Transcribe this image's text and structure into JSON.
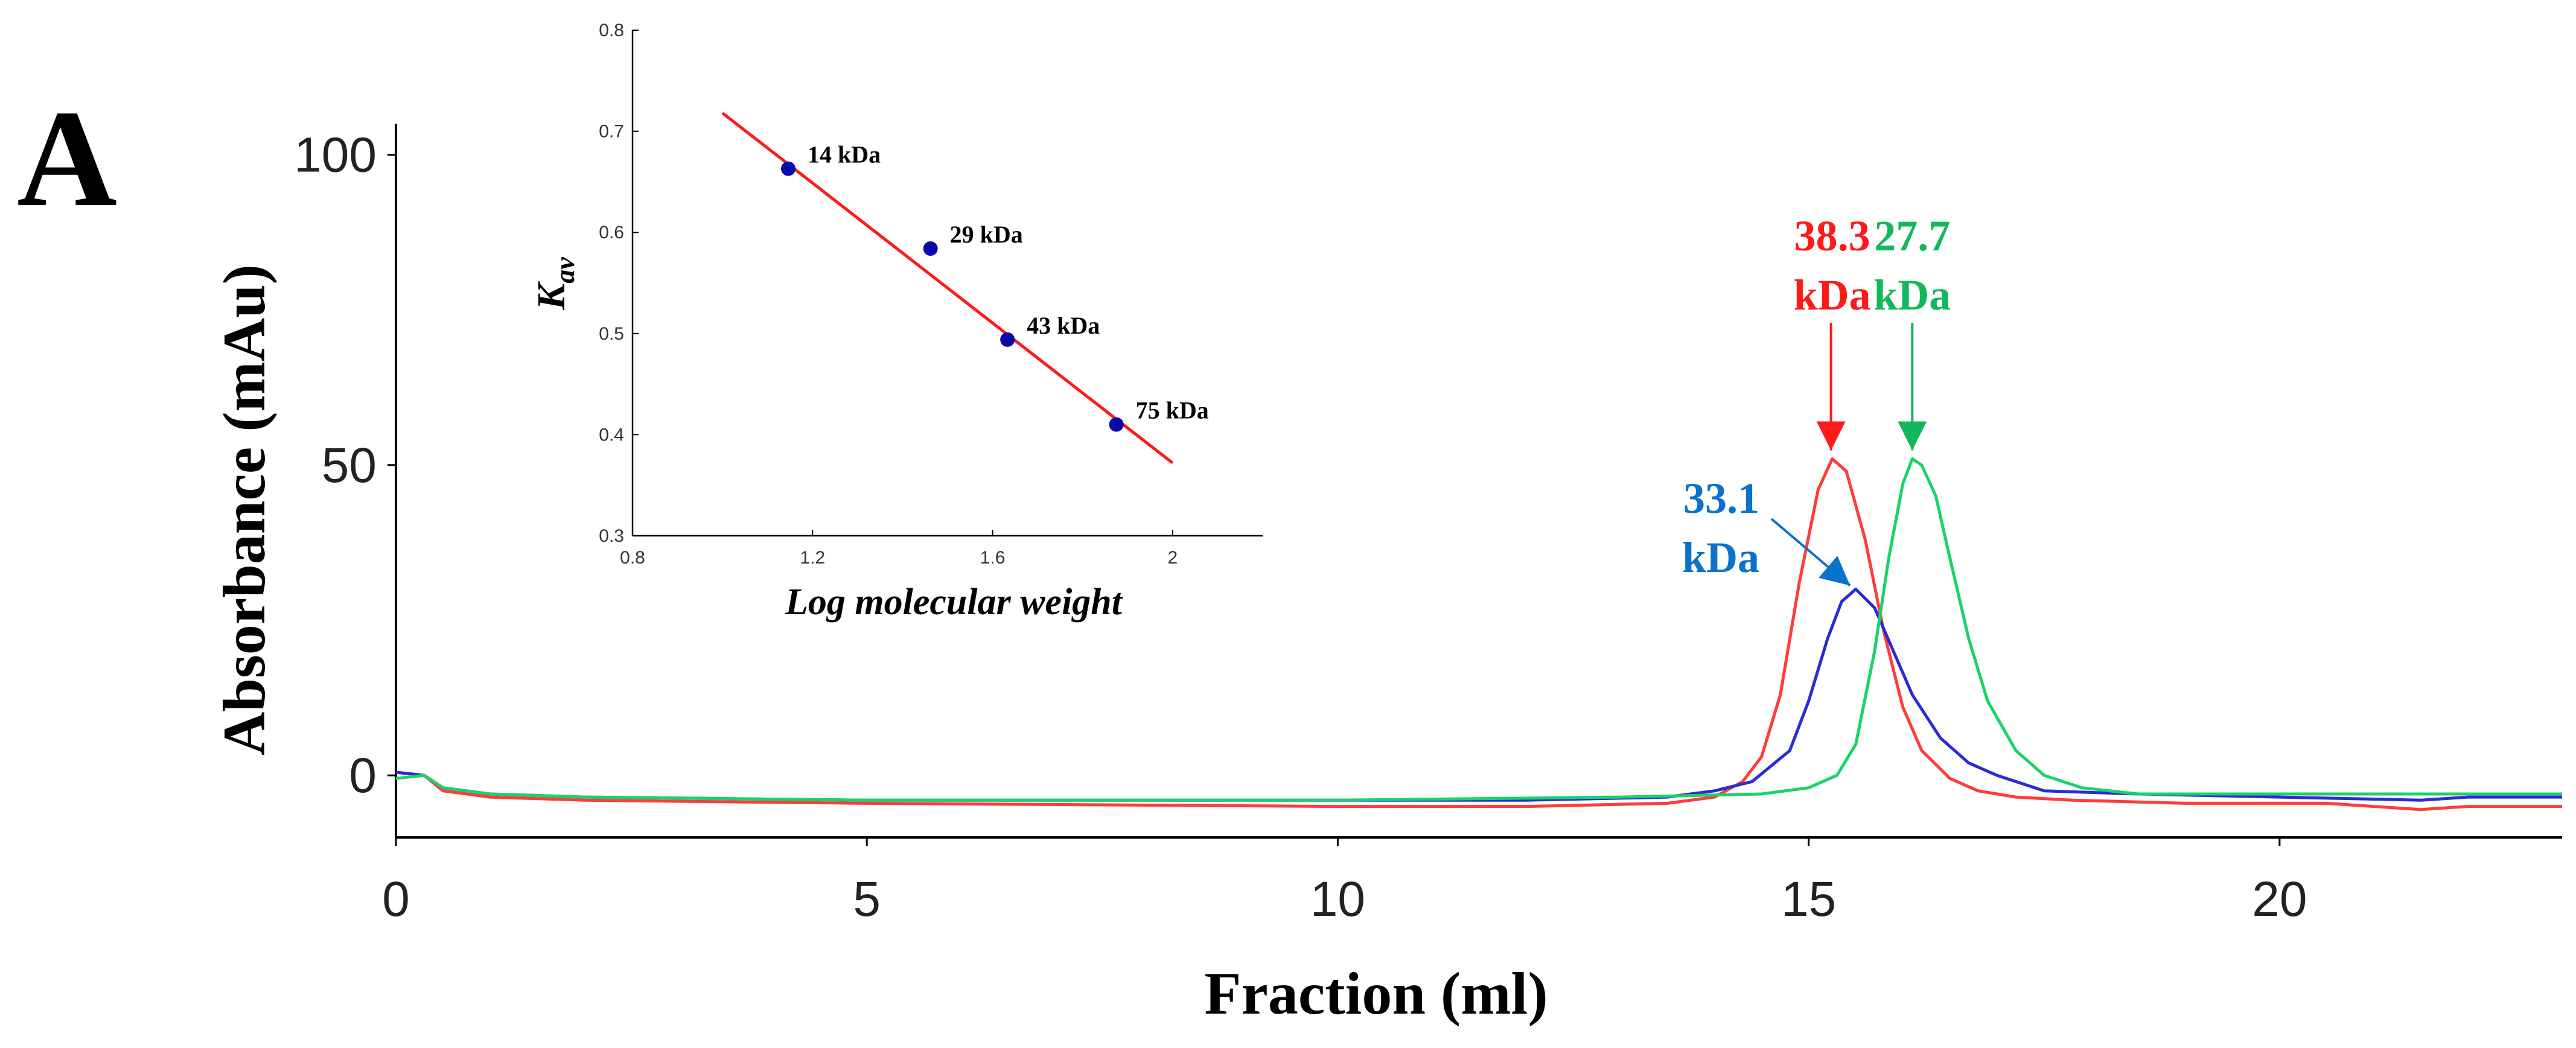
{
  "panel_label": "A",
  "chart_data": [
    {
      "type": "line",
      "xlabel": "Fraction (ml)",
      "ylabel": "Absorbance (mAu)",
      "xlim": [
        0,
        23
      ],
      "ylim": [
        -10,
        105
      ],
      "xticks": [
        0,
        5,
        10,
        15,
        20
      ],
      "xtick_labels": [
        "0",
        "5",
        "10",
        "15",
        "20"
      ],
      "yticks": [
        0,
        50,
        100
      ],
      "ytick_labels": [
        "0",
        "50",
        "100"
      ],
      "grid": false,
      "series": [
        {
          "color": "#ff3b3b",
          "x": [
            0,
            0.3,
            0.5,
            1,
            2,
            5,
            10,
            12,
            13.5,
            14,
            14.3,
            14.5,
            14.7,
            14.9,
            15.1,
            15.25,
            15.4,
            15.6,
            15.8,
            16.0,
            16.2,
            16.5,
            16.8,
            17.2,
            17.8,
            19,
            20.5,
            21,
            21.5,
            22,
            23
          ],
          "y": [
            0.5,
            0,
            -2.5,
            -3.5,
            -4,
            -4.5,
            -5,
            -5,
            -4.5,
            -3.5,
            -1,
            3,
            13,
            31,
            46,
            51,
            49,
            38,
            23,
            11,
            4,
            -0.5,
            -2.5,
            -3.5,
            -4,
            -4.5,
            -4.5,
            -5,
            -5.5,
            -5,
            -5
          ]
        },
        {
          "color": "#2b2bd6",
          "x": [
            0,
            0.3,
            0.5,
            1,
            2,
            5,
            10,
            12,
            13.5,
            14,
            14.4,
            14.8,
            15.0,
            15.2,
            15.35,
            15.5,
            15.7,
            15.9,
            16.1,
            16.4,
            16.7,
            17.0,
            17.5,
            18.5,
            20,
            21.5,
            22,
            23
          ],
          "y": [
            0.5,
            0,
            -2,
            -3,
            -3.5,
            -4,
            -4,
            -4,
            -3.5,
            -2.5,
            -1,
            4,
            12,
            22,
            28,
            30,
            27,
            20,
            13,
            6,
            2,
            0,
            -2.5,
            -3,
            -3.5,
            -4,
            -3.5,
            -3.5
          ]
        },
        {
          "color": "#19d36a",
          "x": [
            0,
            0.3,
            0.5,
            1,
            2,
            5,
            10,
            13,
            14.5,
            15.0,
            15.3,
            15.5,
            15.7,
            15.85,
            16.0,
            16.1,
            16.2,
            16.35,
            16.5,
            16.7,
            16.9,
            17.2,
            17.5,
            17.9,
            18.5,
            20,
            22,
            23
          ],
          "y": [
            -0.5,
            0,
            -2,
            -3,
            -3.5,
            -4,
            -4,
            -3.5,
            -3,
            -2,
            0,
            5,
            20,
            35,
            47,
            51,
            50,
            45,
            35,
            22,
            12,
            4,
            0,
            -2,
            -3,
            -3,
            -3,
            -3
          ]
        }
      ],
      "annotations": [
        {
          "lines": [
            "38.3",
            "kDa"
          ],
          "color": "#ff1a1a",
          "x": 15.25,
          "y": 51
        },
        {
          "lines": [
            "27.7",
            "kDa"
          ],
          "color": "#12b85a",
          "x": 16.1,
          "y": 51
        },
        {
          "lines": [
            "33.1",
            "kDa"
          ],
          "color": "#0b72c9",
          "x": 15.35,
          "y": 30
        }
      ]
    },
    {
      "type": "scatter",
      "xlabel": "Log molecular weight",
      "ylabel": "K",
      "ylabel_subscript": "av",
      "xlim": [
        0.8,
        2.2
      ],
      "ylim": [
        0.3,
        0.8
      ],
      "xticks": [
        0.8,
        1.2,
        1.6,
        2
      ],
      "xtick_labels": [
        "0.8",
        "1.2",
        "1.6",
        "2"
      ],
      "yticks": [
        0.3,
        0.4,
        0.5,
        0.6,
        0.7,
        0.8
      ],
      "ytick_labels": [
        "0.3",
        "0.4",
        "0.5",
        "0.6",
        "0.7",
        "0.8"
      ],
      "grid": false,
      "points": [
        {
          "x": 1.146,
          "y": 0.663,
          "label": "14 kDa"
        },
        {
          "x": 1.462,
          "y": 0.584,
          "label": "29 kDa"
        },
        {
          "x": 1.633,
          "y": 0.494,
          "label": "43 kDa"
        },
        {
          "x": 1.875,
          "y": 0.41,
          "label": "75 kDa"
        }
      ],
      "fit_line": {
        "x": [
          1.0,
          2.0
        ],
        "y": [
          0.718,
          0.372
        ],
        "color": "#ff1a1a"
      },
      "point_color": "#0a0aa8"
    }
  ]
}
